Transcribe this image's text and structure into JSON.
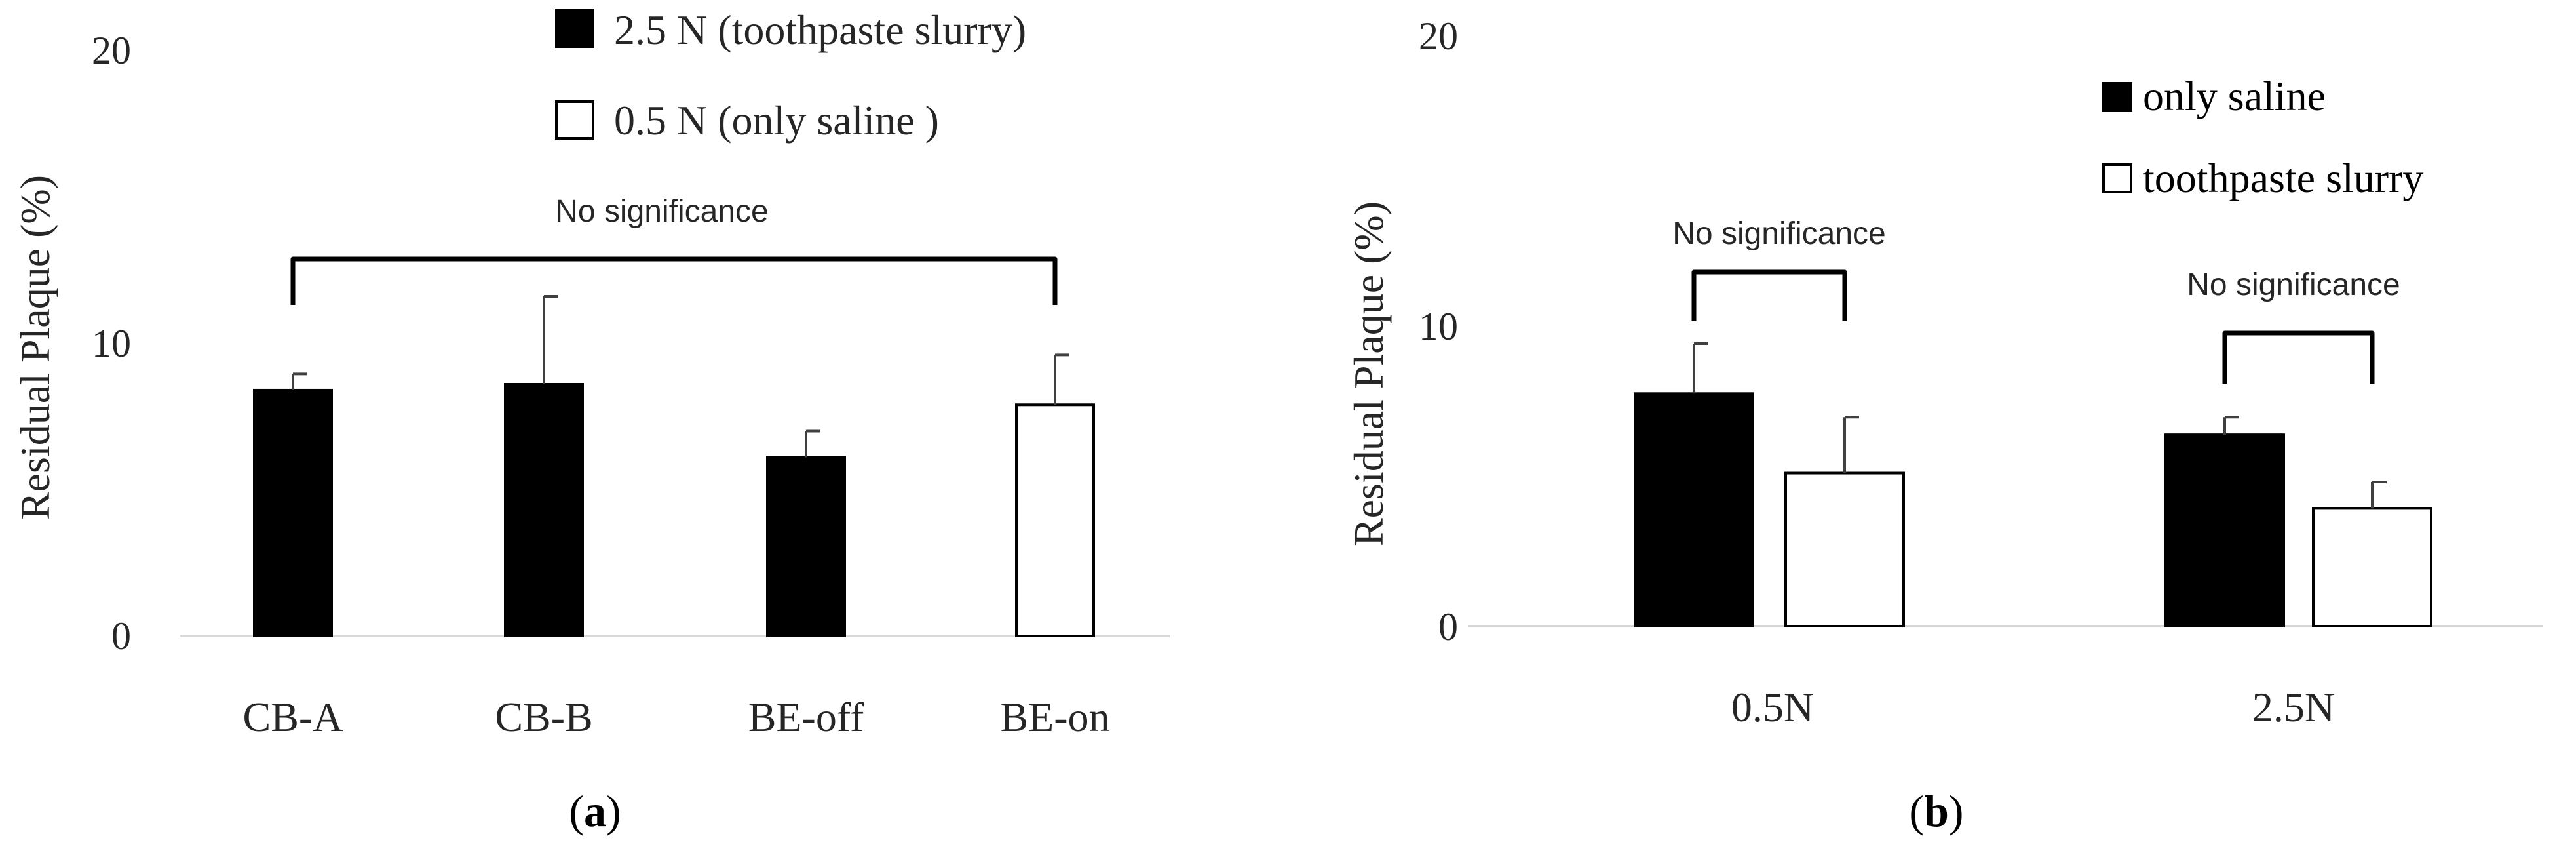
{
  "colors": {
    "filled": "#000000",
    "open": "#ffffff",
    "axis": "#d9d9d9",
    "text": "#262626"
  },
  "chart_data": [
    {
      "panel_label": "(a)",
      "panel_label_bold": "a",
      "type": "bar",
      "title": "",
      "xlabel": "",
      "ylabel": "Residual Plaque (%)",
      "ylim": [
        0,
        20
      ],
      "yticks": [
        "0",
        "10",
        "20"
      ],
      "categories": [
        "CB-A",
        "CB-B",
        "BE-off",
        "BE-on"
      ],
      "values": [
        8.4,
        8.6,
        6.1,
        7.9
      ],
      "errors": [
        0.55,
        3.0,
        0.9,
        1.7
      ],
      "fill": [
        "filled",
        "filled",
        "filled",
        "open"
      ],
      "legend": [
        {
          "label": "2.5 N (toothpaste slurry)",
          "fill": "filled"
        },
        {
          "label": "0.5 N (only saline )",
          "fill": "open"
        }
      ],
      "legend_position": "top-right",
      "annotations": [
        {
          "text": "No significance",
          "from": "CB-A",
          "to": "BE-on",
          "bracket_y": 12.7
        }
      ],
      "grid": false
    },
    {
      "panel_label": "(b)",
      "panel_label_bold": "b",
      "type": "bar",
      "title": "",
      "xlabel": "",
      "ylabel": "Residual Plaque (%)",
      "ylim": [
        0,
        20
      ],
      "yticks": [
        "0",
        "10",
        "20"
      ],
      "categories": [
        "0.5N",
        "2.5N"
      ],
      "series": [
        {
          "name": "only saline",
          "fill": "filled",
          "values": [
            7.9,
            6.5
          ],
          "errors": [
            1.7,
            0.6
          ]
        },
        {
          "name": "toothpaste slurry",
          "fill": "open",
          "values": [
            5.2,
            4.0
          ],
          "errors": [
            1.9,
            0.9
          ]
        }
      ],
      "legend": [
        {
          "label": "only saline",
          "fill": "filled"
        },
        {
          "label": "toothpaste slurry",
          "fill": "open"
        }
      ],
      "legend_position": "top-right",
      "annotations": [
        {
          "text": "No significance",
          "category": "0.5N",
          "bracket_y": 11.3
        },
        {
          "text": "No significance",
          "category": "2.5N",
          "bracket_y": 9.7
        }
      ],
      "grid": false
    }
  ]
}
